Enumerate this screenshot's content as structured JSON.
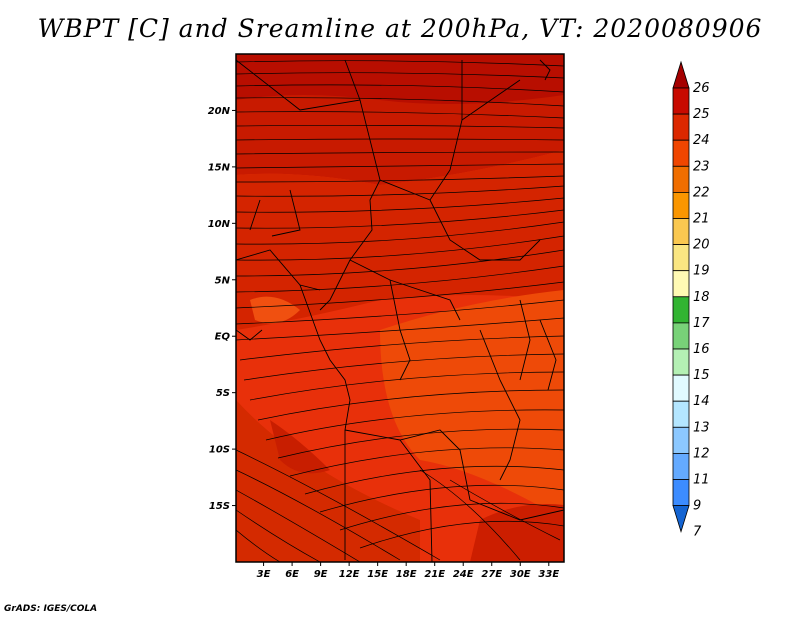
{
  "title": "WBPT [C] and Sreamline at 200hPa, VT: 2020080906",
  "credit": "GrADS: IGES/COLA",
  "map": {
    "lat_ticks": [
      {
        "value": 20,
        "label": "20N"
      },
      {
        "value": 15,
        "label": "15N"
      },
      {
        "value": 10,
        "label": "10N"
      },
      {
        "value": 5,
        "label": "5N"
      },
      {
        "value": 0,
        "label": "EQ"
      },
      {
        "value": -5,
        "label": "5S"
      },
      {
        "value": -10,
        "label": "10S"
      },
      {
        "value": -15,
        "label": "15S"
      }
    ],
    "lon_ticks": [
      {
        "value": 3,
        "label": "3E"
      },
      {
        "value": 6,
        "label": "6E"
      },
      {
        "value": 9,
        "label": "9E"
      },
      {
        "value": 12,
        "label": "12E"
      },
      {
        "value": 15,
        "label": "15E"
      },
      {
        "value": 18,
        "label": "18E"
      },
      {
        "value": 21,
        "label": "21E"
      },
      {
        "value": 24,
        "label": "24E"
      },
      {
        "value": 27,
        "label": "27E"
      },
      {
        "value": 30,
        "label": "30E"
      },
      {
        "value": 33,
        "label": "33E"
      }
    ],
    "lon_range": [
      0.1,
      34.6
    ],
    "lat_range": [
      -20,
      25
    ]
  },
  "colorbar": {
    "labels": [
      "26",
      "25",
      "24",
      "23",
      "22",
      "21",
      "20",
      "19",
      "18",
      "17",
      "16",
      "15",
      "14",
      "13",
      "12",
      "11",
      "9",
      "7"
    ],
    "colors": [
      "#a50000",
      "#c80a00",
      "#dc2800",
      "#f04600",
      "#f06e00",
      "#fa9600",
      "#fac850",
      "#fae682",
      "#fffab4",
      "#32b432",
      "#78d278",
      "#b4f0b4",
      "#e1faff",
      "#b4e6ff",
      "#8cc8ff",
      "#64aaff",
      "#3c8cff",
      "#1464d2"
    ]
  }
}
